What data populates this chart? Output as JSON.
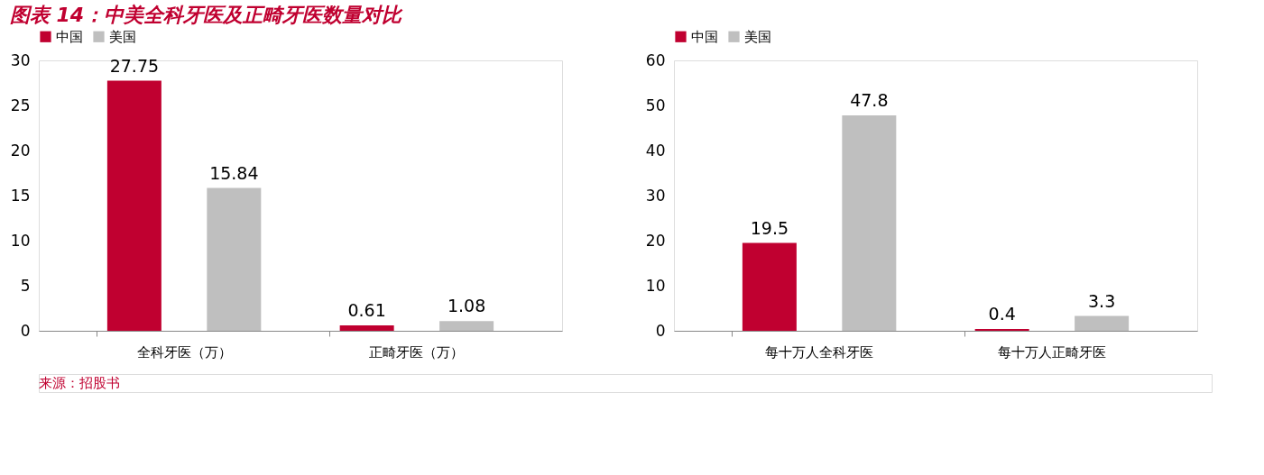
{
  "chart_data": [
    {
      "type": "bar",
      "title": "图表 14：中美全科牙医及正畸牙医数量对比",
      "categories": [
        "全科牙医（万）",
        "正畸牙医（万）"
      ],
      "series": [
        {
          "name": "中国",
          "color": "#c00030",
          "values": [
            27.75,
            0.61
          ]
        },
        {
          "name": "美国",
          "color": "#bfbfbf",
          "values": [
            15.84,
            1.08
          ]
        }
      ],
      "ylim": [
        0,
        30
      ],
      "yticks": [
        0,
        5,
        10,
        15,
        20,
        25,
        30
      ],
      "data_labels": true,
      "legend": "top",
      "grid": false,
      "annotations": [
        "来源：招股书"
      ]
    },
    {
      "type": "bar",
      "categories": [
        "每十万人全科牙医",
        "每十万人正畸牙医"
      ],
      "series": [
        {
          "name": "中国",
          "color": "#c00030",
          "values": [
            19.5,
            0.4
          ]
        },
        {
          "name": "美国",
          "color": "#bfbfbf",
          "values": [
            47.8,
            3.3
          ]
        }
      ],
      "ylim": [
        0,
        60
      ],
      "yticks": [
        0,
        10,
        20,
        30,
        40,
        50,
        60
      ],
      "data_labels": true,
      "legend": "top",
      "grid": false
    }
  ]
}
